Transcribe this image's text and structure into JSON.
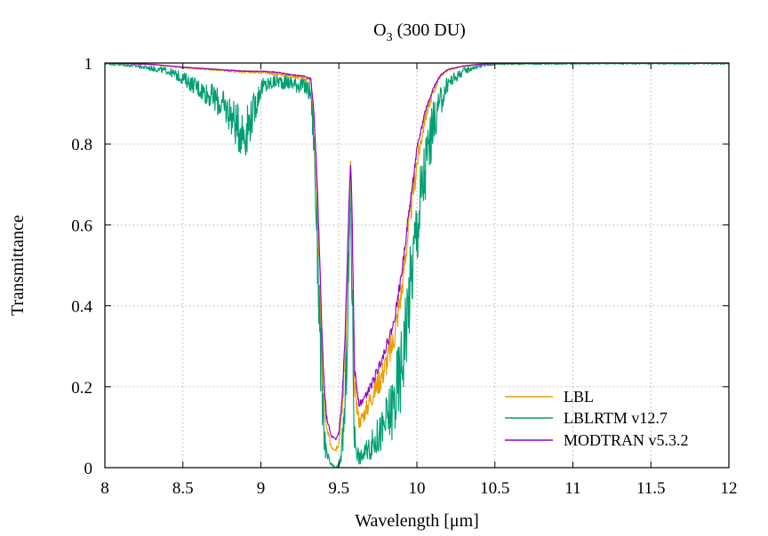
{
  "chart_data": {
    "type": "line",
    "title_main": "O",
    "title_sub": "3",
    "title_rest": " (300 DU)",
    "xlabel": "Wavelength  [μm]",
    "ylabel": "Transmittance",
    "xlim": [
      8,
      12
    ],
    "ylim": [
      0,
      1
    ],
    "xticks": [
      "8",
      "8.5",
      "9",
      "9.5",
      "10",
      "10.5",
      "11",
      "11.5",
      "12"
    ],
    "yticks": [
      "0",
      "0.2",
      "0.4",
      "0.6",
      "0.8",
      "1"
    ],
    "grid": true,
    "legend_position": "bottom-right",
    "series": [
      {
        "name": "LBL",
        "color": "#e69f00",
        "points": [
          [
            8.0,
            1.0
          ],
          [
            8.3,
            0.997
          ],
          [
            8.5,
            0.99
          ],
          [
            8.7,
            0.985
          ],
          [
            8.9,
            0.98
          ],
          [
            9.0,
            0.98
          ],
          [
            9.1,
            0.975
          ],
          [
            9.2,
            0.97
          ],
          [
            9.28,
            0.965
          ],
          [
            9.32,
            0.96
          ],
          [
            9.34,
            0.87
          ],
          [
            9.36,
            0.7
          ],
          [
            9.38,
            0.45
          ],
          [
            9.4,
            0.22
          ],
          [
            9.42,
            0.1
          ],
          [
            9.45,
            0.06
          ],
          [
            9.48,
            0.05
          ],
          [
            9.5,
            0.07
          ],
          [
            9.52,
            0.15
          ],
          [
            9.54,
            0.3
          ],
          [
            9.56,
            0.58
          ],
          [
            9.575,
            0.77
          ],
          [
            9.585,
            0.6
          ],
          [
            9.6,
            0.22
          ],
          [
            9.63,
            0.12
          ],
          [
            9.67,
            0.15
          ],
          [
            9.72,
            0.2
          ],
          [
            9.78,
            0.25
          ],
          [
            9.85,
            0.33
          ],
          [
            9.9,
            0.45
          ],
          [
            9.95,
            0.62
          ],
          [
            10.0,
            0.77
          ],
          [
            10.05,
            0.87
          ],
          [
            10.1,
            0.93
          ],
          [
            10.15,
            0.97
          ],
          [
            10.2,
            0.985
          ],
          [
            10.3,
            0.993
          ],
          [
            10.4,
            0.997
          ],
          [
            10.5,
            0.999
          ],
          [
            11.0,
            1.0
          ],
          [
            12.0,
            1.0
          ]
        ],
        "noise": 0.035
      },
      {
        "name": "LBLRTM v12.7",
        "color": "#009e73",
        "points": [
          [
            8.0,
            1.0
          ],
          [
            8.2,
            0.995
          ],
          [
            8.4,
            0.985
          ],
          [
            8.5,
            0.97
          ],
          [
            8.6,
            0.95
          ],
          [
            8.7,
            0.93
          ],
          [
            8.8,
            0.9
          ],
          [
            8.85,
            0.87
          ],
          [
            8.9,
            0.86
          ],
          [
            8.95,
            0.9
          ],
          [
            9.0,
            0.95
          ],
          [
            9.1,
            0.965
          ],
          [
            9.2,
            0.96
          ],
          [
            9.28,
            0.955
          ],
          [
            9.32,
            0.94
          ],
          [
            9.34,
            0.85
          ],
          [
            9.36,
            0.65
          ],
          [
            9.38,
            0.38
          ],
          [
            9.4,
            0.15
          ],
          [
            9.42,
            0.04
          ],
          [
            9.45,
            0.01
          ],
          [
            9.48,
            0.0
          ],
          [
            9.5,
            0.01
          ],
          [
            9.52,
            0.06
          ],
          [
            9.54,
            0.2
          ],
          [
            9.56,
            0.5
          ],
          [
            9.575,
            0.72
          ],
          [
            9.585,
            0.5
          ],
          [
            9.6,
            0.1
          ],
          [
            9.63,
            0.03
          ],
          [
            9.67,
            0.05
          ],
          [
            9.72,
            0.08
          ],
          [
            9.78,
            0.12
          ],
          [
            9.85,
            0.2
          ],
          [
            9.9,
            0.3
          ],
          [
            9.95,
            0.48
          ],
          [
            10.0,
            0.65
          ],
          [
            10.05,
            0.78
          ],
          [
            10.1,
            0.87
          ],
          [
            10.15,
            0.92
          ],
          [
            10.2,
            0.96
          ],
          [
            10.3,
            0.985
          ],
          [
            10.4,
            0.995
          ],
          [
            10.5,
            0.999
          ],
          [
            11.0,
            1.0
          ],
          [
            12.0,
            1.0
          ]
        ],
        "noise": 0.11
      },
      {
        "name": "MODTRAN v5.3.2",
        "color": "#9400d3",
        "points": [
          [
            8.0,
            1.0
          ],
          [
            8.3,
            0.997
          ],
          [
            8.5,
            0.99
          ],
          [
            8.7,
            0.985
          ],
          [
            8.9,
            0.98
          ],
          [
            9.0,
            0.98
          ],
          [
            9.1,
            0.978
          ],
          [
            9.2,
            0.972
          ],
          [
            9.28,
            0.968
          ],
          [
            9.32,
            0.962
          ],
          [
            9.34,
            0.88
          ],
          [
            9.36,
            0.72
          ],
          [
            9.38,
            0.48
          ],
          [
            9.4,
            0.25
          ],
          [
            9.42,
            0.13
          ],
          [
            9.45,
            0.08
          ],
          [
            9.48,
            0.07
          ],
          [
            9.5,
            0.09
          ],
          [
            9.52,
            0.17
          ],
          [
            9.54,
            0.33
          ],
          [
            9.56,
            0.6
          ],
          [
            9.575,
            0.77
          ],
          [
            9.585,
            0.62
          ],
          [
            9.6,
            0.25
          ],
          [
            9.63,
            0.16
          ],
          [
            9.67,
            0.18
          ],
          [
            9.72,
            0.22
          ],
          [
            9.78,
            0.28
          ],
          [
            9.85,
            0.36
          ],
          [
            9.9,
            0.48
          ],
          [
            9.95,
            0.64
          ],
          [
            10.0,
            0.79
          ],
          [
            10.05,
            0.88
          ],
          [
            10.1,
            0.935
          ],
          [
            10.15,
            0.97
          ],
          [
            10.2,
            0.985
          ],
          [
            10.3,
            0.993
          ],
          [
            10.4,
            0.997
          ],
          [
            10.5,
            0.999
          ],
          [
            11.0,
            1.0
          ],
          [
            12.0,
            1.0
          ]
        ],
        "noise": 0.012
      }
    ]
  }
}
